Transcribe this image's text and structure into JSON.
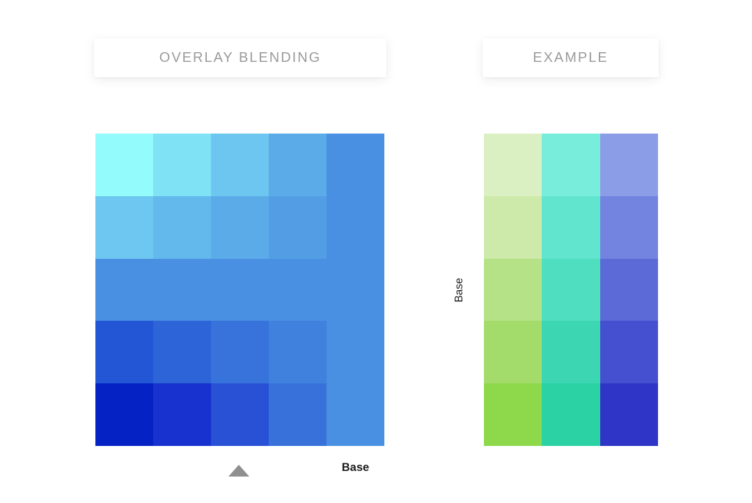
{
  "page": {
    "background": "#ffffff"
  },
  "left_panel": {
    "title": "OVERLAY BLENDING",
    "grid": {
      "rows": 5,
      "cols": 5,
      "colors": [
        [
          "#94FBFC",
          "#7FE2F5",
          "#6CC6EF",
          "#5BABE8",
          "#4A90E2"
        ],
        [
          "#6EC7F0",
          "#64B9EC",
          "#5CABE9",
          "#539DE5",
          "#4A90E2"
        ],
        [
          "#4A90E2",
          "#4A90E2",
          "#4A90E2",
          "#4A90E2",
          "#4A90E2"
        ],
        [
          "#2356D5",
          "#2D64D8",
          "#3773DB",
          "#4081DE",
          "#4A90E2"
        ],
        [
          "#0522C5",
          "#1732CE",
          "#2851D5",
          "#3971DB",
          "#4A90E2"
        ]
      ]
    },
    "pointer_icon": "triangle-up",
    "pointer_color": "#8f8f8f",
    "base_label": "Base"
  },
  "right_panel": {
    "title": "EXAMPLE",
    "base_axis_label": "Base",
    "grid": {
      "rows": 5,
      "cols": 3,
      "colors": [
        [
          "#DAF0C2",
          "#79EDDC",
          "#8C9DE8"
        ],
        [
          "#CDEAAA",
          "#62E5CE",
          "#7383E0"
        ],
        [
          "#B5E287",
          "#4FDEC0",
          "#5B6AD7"
        ],
        [
          "#A3DC6B",
          "#3CD7B2",
          "#4450D0"
        ],
        [
          "#8DD84B",
          "#2BD2A3",
          "#2F35C7"
        ]
      ]
    }
  },
  "colors": {
    "card_background": "#ffffff",
    "title_text": "#9b9b9b",
    "label_text": "#1d1d1d",
    "triangle": "#8f8f8f",
    "base_blue": "#4A90E2"
  }
}
